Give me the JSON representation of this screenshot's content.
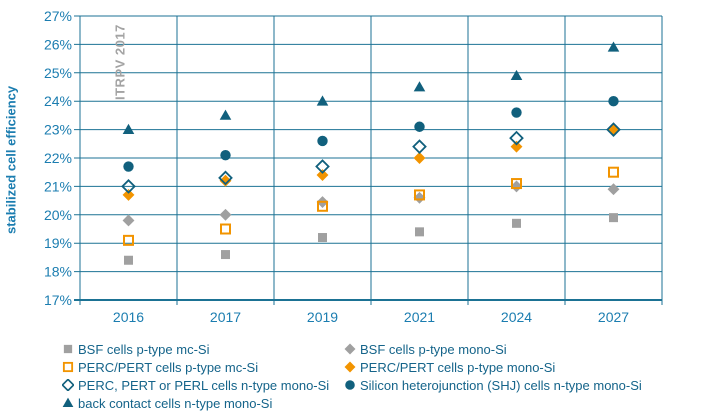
{
  "chart_data": {
    "type": "scatter",
    "title": "",
    "ylabel": "stabilized cell efficiency",
    "xlabel": "",
    "watermark": "ITRPV 2017",
    "categories": [
      "2016",
      "2017",
      "2019",
      "2021",
      "2024",
      "2027"
    ],
    "ylim": [
      17,
      27
    ],
    "ytick_step": 1,
    "ytick_labels": [
      "17%",
      "18%",
      "19%",
      "20%",
      "21%",
      "22%",
      "23%",
      "24%",
      "25%",
      "26%",
      "27%"
    ],
    "grid": true,
    "legend_position": "bottom",
    "series": [
      {
        "name": "BSF cells p-type mc-Si",
        "marker": "square-filled",
        "color": "#a0a0a0",
        "values": [
          18.4,
          18.6,
          19.2,
          19.4,
          19.7,
          19.9
        ]
      },
      {
        "name": "BSF cells p-type mono-Si",
        "marker": "diamond-filled",
        "color": "#a0a0a0",
        "values": [
          19.8,
          20.0,
          20.45,
          20.6,
          21.0,
          20.9
        ]
      },
      {
        "name": "PERC/PERT cells p-type mc-Si",
        "marker": "square-open",
        "color": "#f29400",
        "values": [
          19.1,
          19.5,
          20.3,
          20.7,
          21.1,
          21.5
        ]
      },
      {
        "name": "PERC/PERT cells p-type mono-Si",
        "marker": "diamond-filled",
        "color": "#f29400",
        "values": [
          20.7,
          21.2,
          21.4,
          22.0,
          22.4,
          23.0
        ]
      },
      {
        "name": "PERC, PERT or PERL cells n-type mono-Si",
        "marker": "diamond-open",
        "color": "#11607d",
        "values": [
          21.0,
          21.3,
          21.7,
          22.4,
          22.7,
          23.0
        ]
      },
      {
        "name": "Silicon heterojunction (SHJ) cells n-type mono-Si",
        "marker": "circle-filled",
        "color": "#11607d",
        "values": [
          21.7,
          22.1,
          22.6,
          23.1,
          23.6,
          24.0
        ]
      },
      {
        "name": "back contact cells n-type mono-Si",
        "marker": "triangle-filled",
        "color": "#11607d",
        "values": [
          23.0,
          23.5,
          24.0,
          24.5,
          24.9,
          25.9
        ]
      }
    ],
    "legend_columns": [
      [
        0,
        2,
        4,
        6
      ],
      [
        1,
        3,
        5
      ]
    ],
    "z_order": [
      0,
      1,
      3,
      5,
      6,
      2,
      4
    ]
  },
  "colors": {
    "background": "#ffffff",
    "gridline": "#1b7294",
    "axis_line": "#1b7294",
    "axis_label": "#1b7db0",
    "legend_text": "#15648a",
    "watermark_gray": "#a3a3a3",
    "teal": "#11607d",
    "orange": "#f29400",
    "gray": "#a0a0a0"
  }
}
